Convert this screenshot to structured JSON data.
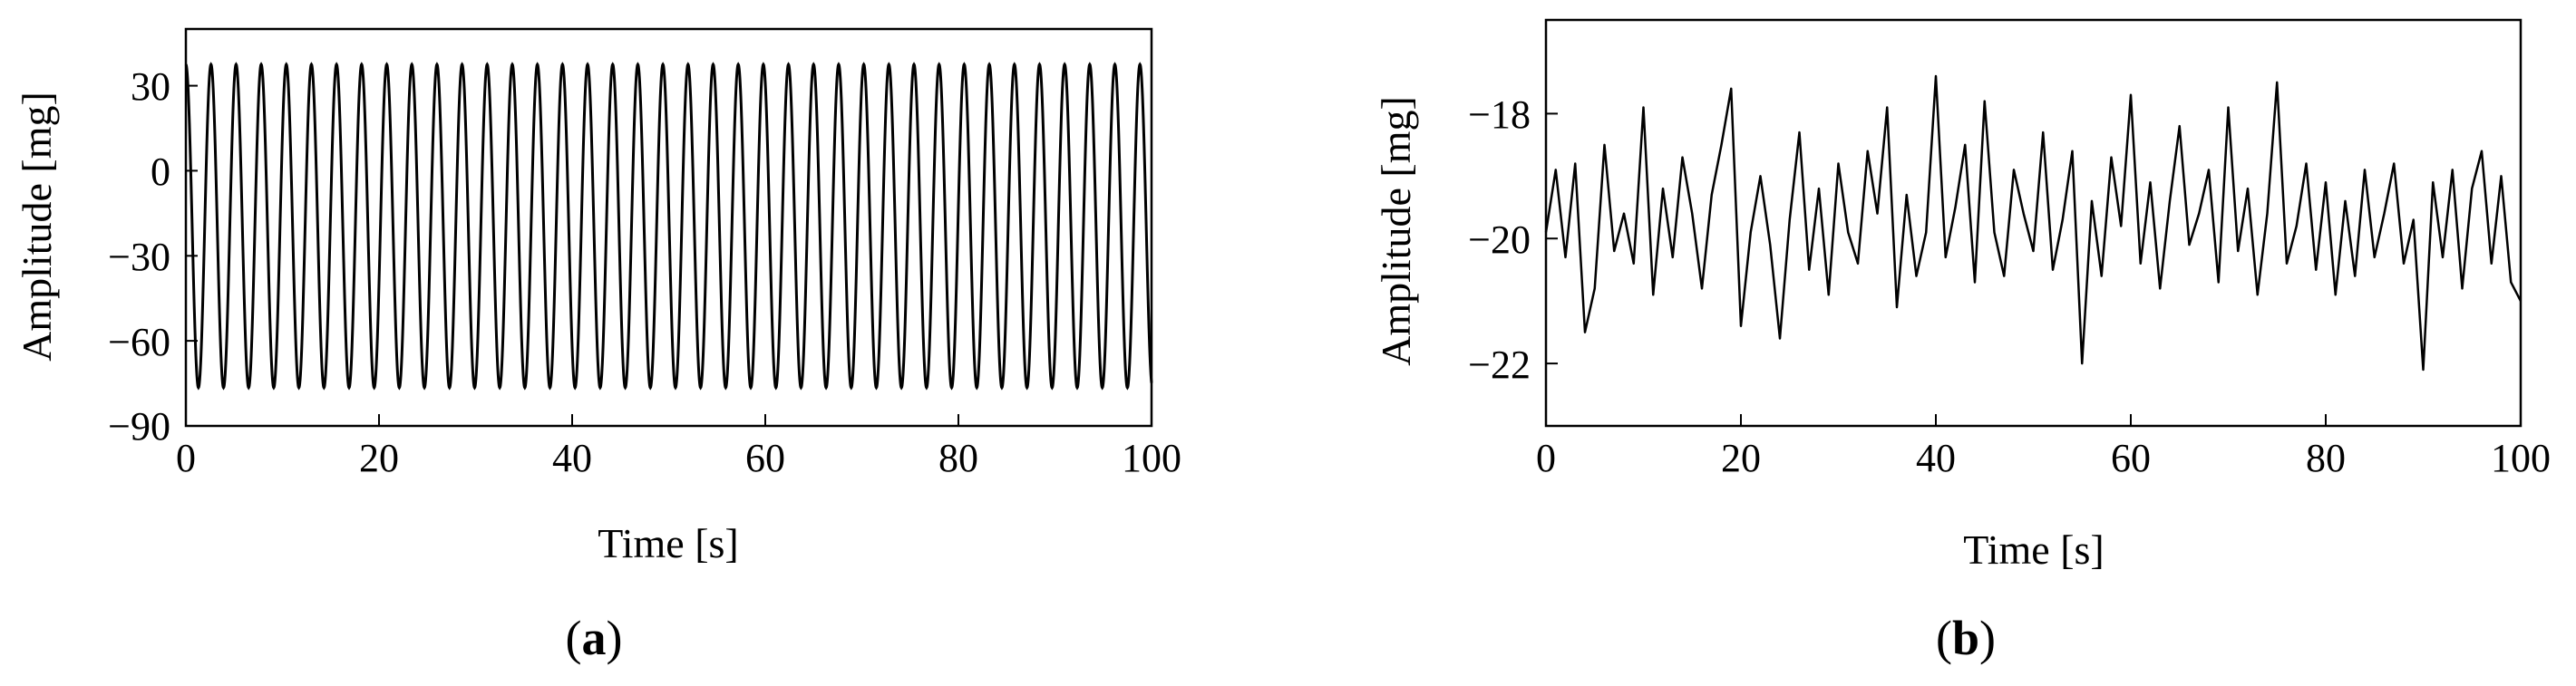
{
  "chart_data": [
    {
      "type": "line",
      "panel_label": {
        "open": "(",
        "letter": "a",
        "close": ")"
      },
      "xlabel": "Time [s]",
      "ylabel": "Amplitude [mg]",
      "xlim": [
        0,
        100
      ],
      "ylim": [
        -90,
        50
      ],
      "xticks": [
        "0",
        "20",
        "40",
        "60",
        "80",
        "100"
      ],
      "yticks": [
        "30",
        "0",
        "−30",
        "−60",
        "−90"
      ],
      "xtick_values": [
        0,
        20,
        40,
        60,
        80,
        100
      ],
      "ytick_values": [
        30,
        0,
        -30,
        -60,
        -90
      ],
      "grid": false,
      "series": [
        {
          "model": "sinusoid",
          "offset": -19.5,
          "amplitude": 57,
          "period_s": 2.6,
          "peak_value": 37,
          "trough_value": -76,
          "x_start": 0,
          "x_end": 100
        }
      ]
    },
    {
      "type": "line",
      "panel_label": {
        "open": "(",
        "letter": "b",
        "close": ")"
      },
      "xlabel": "Time [s]",
      "ylabel": "Amplitude [mg]",
      "xlim": [
        0,
        100
      ],
      "ylim": [
        -23,
        -16.5
      ],
      "xticks": [
        "0",
        "20",
        "40",
        "60",
        "80",
        "100"
      ],
      "yticks": [
        "−18",
        "−20",
        "−22"
      ],
      "xtick_values": [
        0,
        20,
        40,
        60,
        80,
        100
      ],
      "ytick_values": [
        -18,
        -20,
        -22
      ],
      "grid": false,
      "series": [
        {
          "x": [
            0,
            1,
            2,
            3,
            4,
            5,
            6,
            7,
            8,
            9,
            10,
            11,
            12,
            13,
            14,
            15,
            16,
            17,
            18,
            19,
            20,
            21,
            22,
            23,
            24,
            25,
            26,
            27,
            28,
            29,
            30,
            31,
            32,
            33,
            34,
            35,
            36,
            37,
            38,
            39,
            40,
            41,
            42,
            43,
            44,
            45,
            46,
            47,
            48,
            49,
            50,
            51,
            52,
            53,
            54,
            55,
            56,
            57,
            58,
            59,
            60,
            61,
            62,
            63,
            64,
            65,
            66,
            67,
            68,
            69,
            70,
            71,
            72,
            73,
            74,
            75,
            76,
            77,
            78,
            79,
            80,
            81,
            82,
            83,
            84,
            85,
            86,
            87,
            88,
            89,
            90,
            91,
            92,
            93,
            94,
            95,
            96,
            97,
            98,
            99,
            100
          ],
          "y": [
            -19.9,
            -18.9,
            -20.3,
            -18.8,
            -21.5,
            -20.8,
            -18.5,
            -20.2,
            -19.6,
            -20.4,
            -17.9,
            -20.9,
            -19.2,
            -20.3,
            -18.7,
            -19.6,
            -20.8,
            -19.3,
            -18.5,
            -17.6,
            -21.4,
            -19.9,
            -19.0,
            -20.1,
            -21.6,
            -19.7,
            -18.3,
            -20.5,
            -19.2,
            -20.9,
            -18.8,
            -19.9,
            -20.4,
            -18.6,
            -19.6,
            -17.9,
            -21.1,
            -19.3,
            -20.6,
            -19.9,
            -17.4,
            -20.3,
            -19.5,
            -18.5,
            -20.7,
            -17.8,
            -19.9,
            -20.6,
            -18.9,
            -19.6,
            -20.2,
            -18.3,
            -20.5,
            -19.7,
            -18.6,
            -22.0,
            -19.4,
            -20.6,
            -18.7,
            -19.8,
            -17.7,
            -20.4,
            -19.1,
            -20.8,
            -19.4,
            -18.2,
            -20.1,
            -19.6,
            -18.9,
            -20.7,
            -17.9,
            -20.2,
            -19.2,
            -20.9,
            -19.6,
            -17.5,
            -20.4,
            -19.8,
            -18.8,
            -20.5,
            -19.1,
            -20.9,
            -19.4,
            -20.6,
            -18.9,
            -20.3,
            -19.6,
            -18.8,
            -20.4,
            -19.7,
            -22.1,
            -19.1,
            -20.3,
            -18.9,
            -20.8,
            -19.2,
            -18.6,
            -20.4,
            -19.0,
            -20.7,
            -21.0
          ]
        }
      ]
    }
  ]
}
